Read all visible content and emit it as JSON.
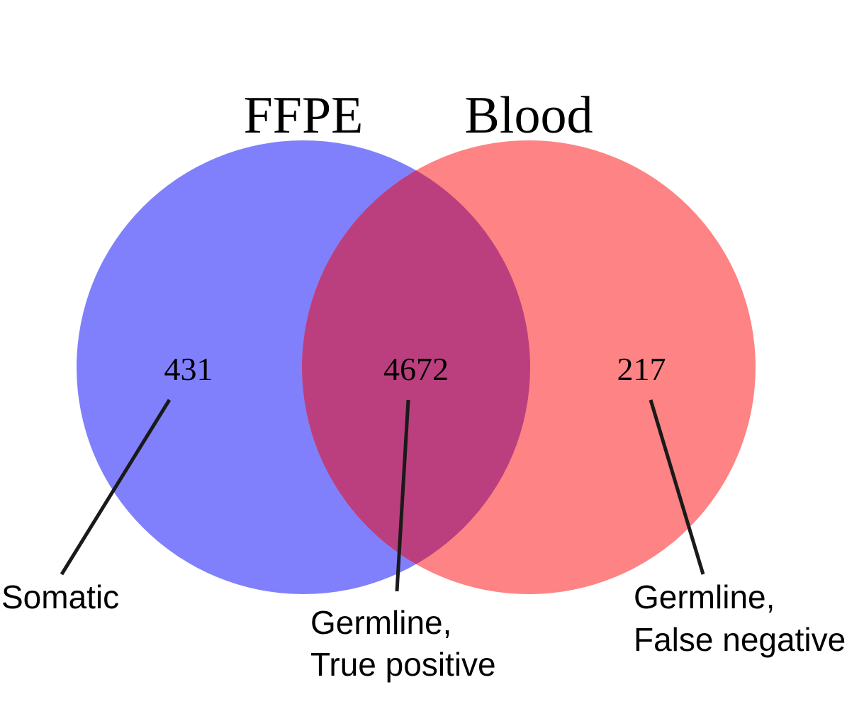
{
  "sets": {
    "left": {
      "title": "FFPE",
      "color": "#8080fc"
    },
    "right": {
      "title": "Blood",
      "color": "#fd8384"
    },
    "overlap_color": "#bb3f7e"
  },
  "regions": {
    "left_only": {
      "count": "431"
    },
    "intersection": {
      "count": "4672"
    },
    "right_only": {
      "count": "217"
    }
  },
  "callouts": {
    "somatic": {
      "line1": "Somatic"
    },
    "true_positive": {
      "line1": "Germline,",
      "line2": "True positive"
    },
    "false_negative": {
      "line1": "Germline,",
      "line2": "False negative"
    }
  }
}
